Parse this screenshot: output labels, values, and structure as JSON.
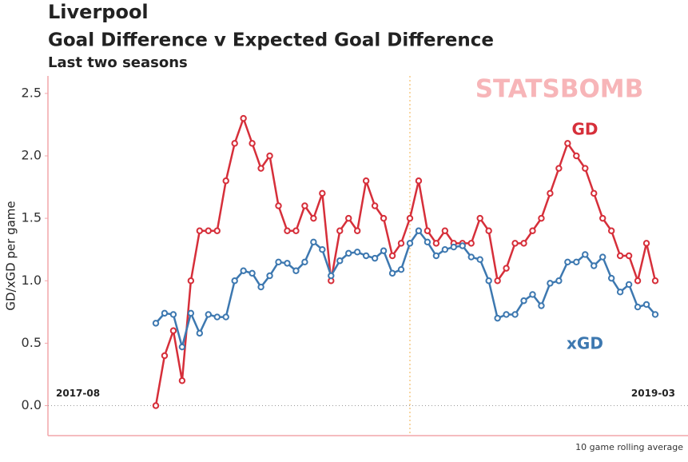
{
  "chart_data": {
    "type": "line",
    "title": "Liverpool",
    "subtitle": "Goal Difference v Expected Goal Difference",
    "subtitle2": "Last two seasons",
    "ylabel": "GD/xGD per game",
    "watermark": "STATSBOMB",
    "footnote": "10 game rolling average",
    "categories": [
      "2017-08",
      null,
      null,
      null,
      null,
      null,
      null,
      null,
      null,
      null,
      null,
      null,
      null,
      null,
      null,
      null,
      null,
      null,
      null,
      null,
      null,
      null,
      null,
      null,
      null,
      null,
      null,
      null,
      null,
      null,
      null,
      null,
      null,
      null,
      null,
      null,
      null,
      null,
      null,
      null,
      null,
      null,
      null,
      null,
      null,
      null,
      null,
      null,
      null,
      null,
      null,
      null,
      null,
      null,
      null,
      null,
      null,
      "2019-03"
    ],
    "season_break_index": 29,
    "series": [
      {
        "name": "GD",
        "color": "#d62f3a",
        "values": [
          0,
          0.4,
          0.6,
          0.2,
          1.0,
          1.4,
          1.4,
          1.4,
          1.8,
          2.1,
          2.3,
          2.1,
          1.9,
          2.0,
          1.6,
          1.4,
          1.4,
          1.6,
          1.5,
          1.7,
          1.0,
          1.4,
          1.5,
          1.4,
          1.8,
          1.6,
          1.5,
          1.2,
          1.3,
          1.5,
          1.8,
          1.4,
          1.3,
          1.4,
          1.3,
          1.3,
          1.3,
          1.5,
          1.4,
          1.0,
          1.1,
          1.3,
          1.3,
          1.4,
          1.5,
          1.7,
          1.9,
          2.1,
          2.0,
          1.9,
          1.7,
          1.5,
          1.4,
          1.2,
          1.2,
          1.0,
          1.3,
          1.0
        ]
      },
      {
        "name": "xGD",
        "color": "#3d78b0",
        "values": [
          0.66,
          0.74,
          0.73,
          0.47,
          0.74,
          0.58,
          0.73,
          0.71,
          0.71,
          1.0,
          1.08,
          1.06,
          0.95,
          1.04,
          1.15,
          1.14,
          1.08,
          1.15,
          1.31,
          1.25,
          1.04,
          1.16,
          1.22,
          1.23,
          1.2,
          1.18,
          1.24,
          1.06,
          1.09,
          1.3,
          1.4,
          1.31,
          1.2,
          1.25,
          1.27,
          1.28,
          1.19,
          1.17,
          1.0,
          0.7,
          0.73,
          0.73,
          0.84,
          0.89,
          0.8,
          0.98,
          1.0,
          1.15,
          1.15,
          1.21,
          1.12,
          1.19,
          1.02,
          0.91,
          0.97,
          0.79,
          0.81,
          0.73
        ]
      }
    ],
    "ylim": [
      -0.24,
      2.64
    ],
    "yticks": [
      {
        "value": 0,
        "label": "0.0"
      },
      0.5,
      {
        "value": 1,
        "label": "1.0"
      },
      1.5,
      {
        "value": 2,
        "label": "2.0"
      },
      2.5
    ]
  }
}
